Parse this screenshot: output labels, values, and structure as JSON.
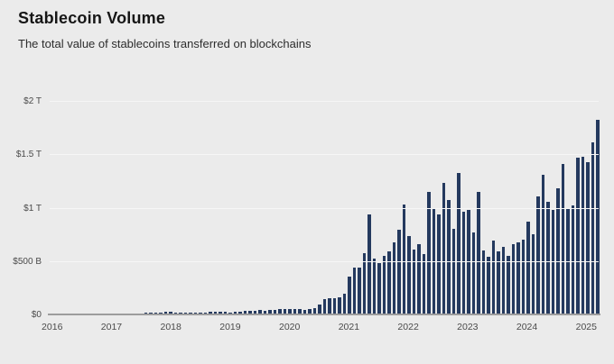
{
  "header": {
    "title": "Stablecoin Volume",
    "subtitle": "The total value of stablecoins transferred on blockchains"
  },
  "colors": {
    "background": "#ebebeb",
    "bar": "#24395e",
    "axis_line": "#9c9c9c",
    "tick_text": "#4a4a4a",
    "title_text": "#161616"
  },
  "chart_data": {
    "type": "bar",
    "title": "Stablecoin Volume",
    "subtitle": "The total value of stablecoins transferred on blockchains",
    "unit": "USD billions per month",
    "grid": "horizontal",
    "legend": "none",
    "bar_color": "#24395e",
    "ylim": [
      0,
      2000
    ],
    "y_ticks": [
      {
        "value": 0,
        "label": "$0"
      },
      {
        "value": 500,
        "label": "$500 B"
      },
      {
        "value": 1000,
        "label": "$1 T"
      },
      {
        "value": 1500,
        "label": "$1.5 T"
      },
      {
        "value": 2000,
        "label": "$2 T"
      }
    ],
    "x_ticks": [
      {
        "month_index": 0,
        "label": "2016"
      },
      {
        "month_index": 12,
        "label": "2017"
      },
      {
        "month_index": 24,
        "label": "2018"
      },
      {
        "month_index": 36,
        "label": "2019"
      },
      {
        "month_index": 48,
        "label": "2020"
      },
      {
        "month_index": 60,
        "label": "2021"
      },
      {
        "month_index": 72,
        "label": "2022"
      },
      {
        "month_index": 84,
        "label": "2023"
      },
      {
        "month_index": 96,
        "label": "2024"
      },
      {
        "month_index": 108,
        "label": "2025"
      }
    ],
    "x": [
      "2016-01",
      "2016-02",
      "2016-03",
      "2016-04",
      "2016-05",
      "2016-06",
      "2016-07",
      "2016-08",
      "2016-09",
      "2016-10",
      "2016-11",
      "2016-12",
      "2017-01",
      "2017-02",
      "2017-03",
      "2017-04",
      "2017-05",
      "2017-06",
      "2017-07",
      "2017-08",
      "2017-09",
      "2017-10",
      "2017-11",
      "2017-12",
      "2018-01",
      "2018-02",
      "2018-03",
      "2018-04",
      "2018-05",
      "2018-06",
      "2018-07",
      "2018-08",
      "2018-09",
      "2018-10",
      "2018-11",
      "2018-12",
      "2019-01",
      "2019-02",
      "2019-03",
      "2019-04",
      "2019-05",
      "2019-06",
      "2019-07",
      "2019-08",
      "2019-09",
      "2019-10",
      "2019-11",
      "2019-12",
      "2020-01",
      "2020-02",
      "2020-03",
      "2020-04",
      "2020-05",
      "2020-06",
      "2020-07",
      "2020-08",
      "2020-09",
      "2020-10",
      "2020-11",
      "2020-12",
      "2021-01",
      "2021-02",
      "2021-03",
      "2021-04",
      "2021-05",
      "2021-06",
      "2021-07",
      "2021-08",
      "2021-09",
      "2021-10",
      "2021-11",
      "2021-12",
      "2022-01",
      "2022-02",
      "2022-03",
      "2022-04",
      "2022-05",
      "2022-06",
      "2022-07",
      "2022-08",
      "2022-09",
      "2022-10",
      "2022-11",
      "2022-12",
      "2023-01",
      "2023-02",
      "2023-03",
      "2023-04",
      "2023-05",
      "2023-06",
      "2023-07",
      "2023-08",
      "2023-09",
      "2023-10",
      "2023-11",
      "2023-12",
      "2024-01",
      "2024-02",
      "2024-03",
      "2024-04",
      "2024-05",
      "2024-06",
      "2024-07",
      "2024-08",
      "2024-09",
      "2024-10",
      "2024-11",
      "2024-12",
      "2025-01",
      "2025-02",
      "2025-03"
    ],
    "values": [
      2,
      2,
      2,
      2,
      3,
      3,
      3,
      3,
      4,
      4,
      5,
      6,
      6,
      7,
      8,
      9,
      10,
      11,
      12,
      13,
      14,
      15,
      18,
      22,
      24,
      21,
      19,
      18,
      20,
      21,
      19,
      21,
      23,
      25,
      29,
      26,
      18,
      22,
      28,
      34,
      36,
      38,
      40,
      38,
      42,
      45,
      47,
      50,
      50,
      48,
      54,
      42,
      52,
      62,
      90,
      140,
      150,
      148,
      161,
      195,
      356,
      435,
      435,
      576,
      938,
      520,
      483,
      551,
      593,
      678,
      790,
      1028,
      731,
      610,
      661,
      562,
      1150,
      991,
      941,
      1229,
      1068,
      805,
      1322,
      958,
      983,
      771,
      1144,
      602,
      542,
      695,
      593,
      636,
      551,
      661,
      678,
      697,
      873,
      754,
      1102,
      1305,
      1051,
      983,
      1178,
      1407,
      992,
      1025,
      1466,
      1474,
      1424,
      1613,
      1822
    ]
  }
}
